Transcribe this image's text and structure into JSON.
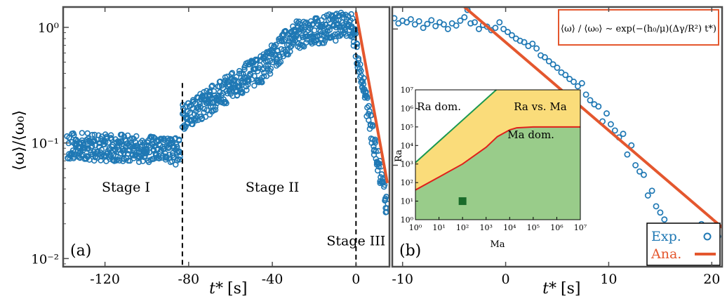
{
  "colors": {
    "exp": "#1f78b4",
    "ana": "#e4572e",
    "frame": "#4d4d4d",
    "region_ra": "#a9d8e8",
    "region_mix": "#fadc7a",
    "region_ma": "#99cc8a",
    "ra_line": "#1a9850",
    "ma_line": "#e0201b",
    "marker": "#1a6b2a"
  },
  "chart_data": [
    {
      "type": "scatter",
      "panel_label": "(a)",
      "xlabel_main": "t*",
      "xlabel_unit": "[s]",
      "ylabel": "⟨ω⟩/⟨ω₀⟩",
      "xlim": [
        -140,
        16
      ],
      "ylim": [
        0.0085,
        1.5
      ],
      "yscale": "log",
      "xticks": [
        -120,
        -80,
        -40,
        0
      ],
      "xtick_labels": [
        "-120",
        "-80",
        "-40",
        "0"
      ],
      "yticks": [
        0.01,
        0.1,
        1
      ],
      "ytick_labels": [
        "10⁻²",
        "10⁻¹",
        "10⁰"
      ],
      "stage_dividers_x": [
        -83,
        0
      ],
      "stage_labels": [
        {
          "text": "Stage I",
          "x": -110,
          "y": 0.038
        },
        {
          "text": "Stage II",
          "x": -40,
          "y": 0.038
        },
        {
          "text": "Stage III",
          "x": 0,
          "y": 0.013
        }
      ],
      "series": [
        {
          "marker": "circle",
          "segments": [
            {
              "x_start": -138,
              "x_end": -84,
              "y_start": 0.095,
              "y_end": 0.085
            },
            {
              "x_start": -83,
              "x_end": -70,
              "y_start": 0.17,
              "y_end": 0.23
            },
            {
              "x_start": -70,
              "x_end": -55,
              "y_start": 0.23,
              "y_end": 0.35
            },
            {
              "x_start": -55,
              "x_end": -44,
              "y_start": 0.35,
              "y_end": 0.45
            },
            {
              "x_start": -44,
              "x_end": -30,
              "y_start": 0.45,
              "y_end": 0.85
            },
            {
              "x_start": -30,
              "x_end": -2,
              "y_start": 0.85,
              "y_end": 1.08
            },
            {
              "x_start": -2,
              "x_end": 15,
              "y_start": 1.05,
              "y_end": 0.025
            }
          ],
          "points_per_second": 6
        },
        {
          "type": "line",
          "x": [
            0,
            15
          ],
          "y": [
            1.35,
            0.045
          ]
        }
      ]
    },
    {
      "type": "scatter",
      "panel_label": "(b)",
      "xlabel_main": "t*",
      "xlabel_unit": "[s]",
      "xlim": [
        -11,
        21
      ],
      "ylim": [
        0.018,
        1.45
      ],
      "yscale": "log",
      "xticks": [
        -10,
        0,
        10,
        20
      ],
      "xtick_labels": [
        "-10",
        "0",
        "10",
        "20"
      ],
      "series": [
        {
          "name": "Exp.",
          "marker": "circle",
          "points": [
            {
              "x": -10.8,
              "y": 1.2
            },
            {
              "x": -10.4,
              "y": 1.1
            },
            {
              "x": -10,
              "y": 1.15
            },
            {
              "x": -9.6,
              "y": 1.12
            },
            {
              "x": -9.2,
              "y": 1.18
            },
            {
              "x": -8.8,
              "y": 1.08
            },
            {
              "x": -8.4,
              "y": 1.14
            },
            {
              "x": -8,
              "y": 1.02
            },
            {
              "x": -7.6,
              "y": 1.09
            },
            {
              "x": -7.2,
              "y": 1.16
            },
            {
              "x": -6.8,
              "y": 1.05
            },
            {
              "x": -6.4,
              "y": 1.12
            },
            {
              "x": -6,
              "y": 1.08
            },
            {
              "x": -5.6,
              "y": 1.0
            },
            {
              "x": -5.2,
              "y": 1.1
            },
            {
              "x": -4.8,
              "y": 1.06
            },
            {
              "x": -4.4,
              "y": 1.15
            },
            {
              "x": -4,
              "y": 1.22
            },
            {
              "x": -3.7,
              "y": 1.38
            },
            {
              "x": -3.4,
              "y": 1.1
            },
            {
              "x": -3,
              "y": 1.12
            },
            {
              "x": -2.6,
              "y": 1.0
            },
            {
              "x": -2.2,
              "y": 1.07
            },
            {
              "x": -1.8,
              "y": 1.04
            },
            {
              "x": -1.4,
              "y": 0.98
            },
            {
              "x": -1,
              "y": 1.02
            },
            {
              "x": -0.6,
              "y": 1.12
            },
            {
              "x": -0.2,
              "y": 1.0
            },
            {
              "x": 0.2,
              "y": 0.95
            },
            {
              "x": 0.6,
              "y": 0.9
            },
            {
              "x": 1,
              "y": 0.85
            },
            {
              "x": 1.4,
              "y": 0.82
            },
            {
              "x": 1.8,
              "y": 0.8
            },
            {
              "x": 2.2,
              "y": 0.75
            },
            {
              "x": 2.6,
              "y": 0.78
            },
            {
              "x": 3,
              "y": 0.72
            },
            {
              "x": 3.4,
              "y": 0.64
            },
            {
              "x": 3.8,
              "y": 0.62
            },
            {
              "x": 4.2,
              "y": 0.58
            },
            {
              "x": 4.6,
              "y": 0.55
            },
            {
              "x": 5,
              "y": 0.52
            },
            {
              "x": 5.4,
              "y": 0.48
            },
            {
              "x": 5.8,
              "y": 0.46
            },
            {
              "x": 6.2,
              "y": 0.43
            },
            {
              "x": 6.6,
              "y": 0.41
            },
            {
              "x": 7,
              "y": 0.38
            },
            {
              "x": 7.4,
              "y": 0.4
            },
            {
              "x": 7.8,
              "y": 0.33
            },
            {
              "x": 8.2,
              "y": 0.3
            },
            {
              "x": 8.6,
              "y": 0.28
            },
            {
              "x": 9,
              "y": 0.27
            },
            {
              "x": 9.4,
              "y": 0.21
            },
            {
              "x": 9.8,
              "y": 0.24
            },
            {
              "x": 10.2,
              "y": 0.2
            },
            {
              "x": 10.6,
              "y": 0.18
            },
            {
              "x": 11,
              "y": 0.16
            },
            {
              "x": 11.4,
              "y": 0.17
            },
            {
              "x": 11.8,
              "y": 0.12
            },
            {
              "x": 12.2,
              "y": 0.14
            },
            {
              "x": 12.6,
              "y": 0.1
            },
            {
              "x": 13,
              "y": 0.09
            },
            {
              "x": 13.4,
              "y": 0.085
            },
            {
              "x": 13.8,
              "y": 0.06
            },
            {
              "x": 14.2,
              "y": 0.065
            },
            {
              "x": 14.6,
              "y": 0.05
            },
            {
              "x": 15,
              "y": 0.045
            },
            {
              "x": 15.4,
              "y": 0.04
            },
            {
              "x": 15.8,
              "y": 0.035
            },
            {
              "x": 16.2,
              "y": 0.033
            },
            {
              "x": 16.6,
              "y": 0.03
            },
            {
              "x": 17,
              "y": 0.026
            },
            {
              "x": 17.3,
              "y": 0.021
            },
            {
              "x": 17.6,
              "y": 0.03
            },
            {
              "x": 18,
              "y": 0.028
            },
            {
              "x": 18.4,
              "y": 0.025
            },
            {
              "x": 19,
              "y": 0.037
            },
            {
              "x": 19.5,
              "y": 0.028
            },
            {
              "x": 20,
              "y": 0.026
            },
            {
              "x": 20.6,
              "y": 0.03
            }
          ]
        },
        {
          "name": "Ana.",
          "type": "line",
          "x": [
            -4,
            21
          ],
          "y": [
            1.45,
            0.035
          ]
        }
      ],
      "legend": {
        "placement": "bottom-right",
        "entries": [
          "Exp.",
          "Ana."
        ]
      },
      "annotation_formula": "⟨ω⟩ / ⟨ω₀⟩ ∼ exp(−(h₀/μ)(Δγ/R²) t*)",
      "inset": {
        "type": "area",
        "xscale": "log",
        "yscale": "log",
        "xlim": [
          1,
          10000000
        ],
        "ylim": [
          1,
          10000000
        ],
        "xlabel": "Ma",
        "ylabel": "Ra",
        "tick_exponents": [
          0,
          1,
          2,
          3,
          4,
          5,
          6,
          7
        ],
        "tick_labels": [
          "10⁰",
          "10¹",
          "10²",
          "10³",
          "10⁴",
          "10⁵",
          "10⁶",
          "10⁷"
        ],
        "regions": [
          {
            "label": "Ra dom.",
            "label_pos": {
              "ma": 10,
              "ra": 800000
            }
          },
          {
            "label": "Ra vs. Ma",
            "label_pos": {
              "ma": 200000,
              "ra": 800000
            }
          },
          {
            "label": "Ma dom.",
            "label_pos": {
              "ma": 80000,
              "ra": 25000
            }
          }
        ],
        "ra_boundary": {
          "ma": [
            1,
            10000000
          ],
          "ra": [
            1200,
            120000000000
          ]
        },
        "ma_boundary": {
          "ma": [
            1,
            10,
            100,
            1000,
            3000,
            10000,
            20000,
            100000,
            10000000
          ],
          "ra": [
            40,
            200,
            1000,
            8000,
            30000,
            70000,
            90000,
            100000,
            100000
          ]
        },
        "marker_point": {
          "ma": 100,
          "ra": 10
        }
      }
    }
  ]
}
